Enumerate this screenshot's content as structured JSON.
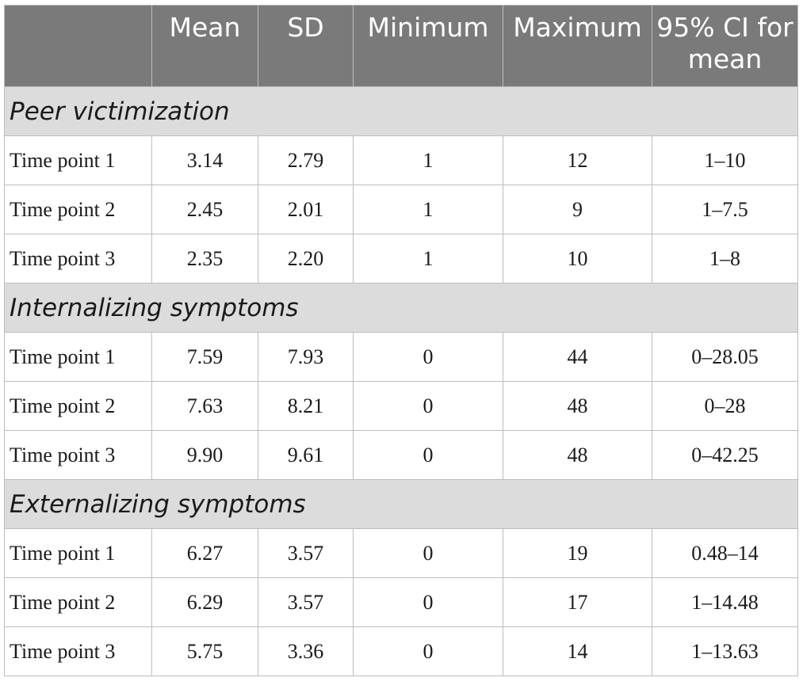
{
  "header": {
    "blank": "",
    "mean": "Mean",
    "sd": "SD",
    "minimum": "Minimum",
    "maximum": "Maximum",
    "ci": "95% CI for mean"
  },
  "sections": [
    {
      "title": "Peer victimization",
      "rows": [
        {
          "label": "Time point 1",
          "mean": "3.14",
          "sd": "2.79",
          "min": "1",
          "max": "12",
          "ci": "1–10"
        },
        {
          "label": "Time point 2",
          "mean": "2.45",
          "sd": "2.01",
          "min": "1",
          "max": "9",
          "ci": "1–7.5"
        },
        {
          "label": "Time point 3",
          "mean": "2.35",
          "sd": "2.20",
          "min": "1",
          "max": "10",
          "ci": "1–8"
        }
      ]
    },
    {
      "title": "Internalizing symptoms",
      "rows": [
        {
          "label": "Time point 1",
          "mean": "7.59",
          "sd": "7.93",
          "min": "0",
          "max": "44",
          "ci": "0–28.05"
        },
        {
          "label": "Time point 2",
          "mean": "7.63",
          "sd": "8.21",
          "min": "0",
          "max": "48",
          "ci": "0–28"
        },
        {
          "label": "Time point 3",
          "mean": "9.90",
          "sd": "9.61",
          "min": "0",
          "max": "48",
          "ci": "0–42.25"
        }
      ]
    },
    {
      "title": "Externalizing symptoms",
      "rows": [
        {
          "label": "Time point 1",
          "mean": "6.27",
          "sd": "3.57",
          "min": "0",
          "max": "19",
          "ci": "0.48–14"
        },
        {
          "label": "Time point 2",
          "mean": "6.29",
          "sd": "3.57",
          "min": "0",
          "max": "17",
          "ci": "1–14.48"
        },
        {
          "label": "Time point 3",
          "mean": "5.75",
          "sd": "3.36",
          "min": "0",
          "max": "14",
          "ci": "1–13.63"
        }
      ]
    }
  ]
}
